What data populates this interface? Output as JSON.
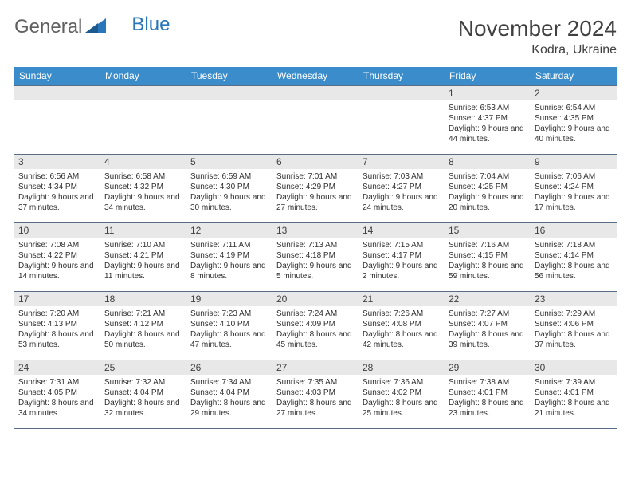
{
  "logo": {
    "general": "General",
    "blue": "Blue"
  },
  "title": "November 2024",
  "subtitle": "Kodra, Ukraine",
  "colors": {
    "header_bg": "#3b8ccb",
    "header_text": "#ffffff",
    "daynum_bg": "#e8e8e8",
    "rule": "#5a6d85",
    "text": "#303030"
  },
  "days_of_week": [
    "Sunday",
    "Monday",
    "Tuesday",
    "Wednesday",
    "Thursday",
    "Friday",
    "Saturday"
  ],
  "weeks": [
    [
      {
        "n": "",
        "sr": "",
        "ss": "",
        "dl": ""
      },
      {
        "n": "",
        "sr": "",
        "ss": "",
        "dl": ""
      },
      {
        "n": "",
        "sr": "",
        "ss": "",
        "dl": ""
      },
      {
        "n": "",
        "sr": "",
        "ss": "",
        "dl": ""
      },
      {
        "n": "",
        "sr": "",
        "ss": "",
        "dl": ""
      },
      {
        "n": "1",
        "sr": "Sunrise: 6:53 AM",
        "ss": "Sunset: 4:37 PM",
        "dl": "Daylight: 9 hours and 44 minutes."
      },
      {
        "n": "2",
        "sr": "Sunrise: 6:54 AM",
        "ss": "Sunset: 4:35 PM",
        "dl": "Daylight: 9 hours and 40 minutes."
      }
    ],
    [
      {
        "n": "3",
        "sr": "Sunrise: 6:56 AM",
        "ss": "Sunset: 4:34 PM",
        "dl": "Daylight: 9 hours and 37 minutes."
      },
      {
        "n": "4",
        "sr": "Sunrise: 6:58 AM",
        "ss": "Sunset: 4:32 PM",
        "dl": "Daylight: 9 hours and 34 minutes."
      },
      {
        "n": "5",
        "sr": "Sunrise: 6:59 AM",
        "ss": "Sunset: 4:30 PM",
        "dl": "Daylight: 9 hours and 30 minutes."
      },
      {
        "n": "6",
        "sr": "Sunrise: 7:01 AM",
        "ss": "Sunset: 4:29 PM",
        "dl": "Daylight: 9 hours and 27 minutes."
      },
      {
        "n": "7",
        "sr": "Sunrise: 7:03 AM",
        "ss": "Sunset: 4:27 PM",
        "dl": "Daylight: 9 hours and 24 minutes."
      },
      {
        "n": "8",
        "sr": "Sunrise: 7:04 AM",
        "ss": "Sunset: 4:25 PM",
        "dl": "Daylight: 9 hours and 20 minutes."
      },
      {
        "n": "9",
        "sr": "Sunrise: 7:06 AM",
        "ss": "Sunset: 4:24 PM",
        "dl": "Daylight: 9 hours and 17 minutes."
      }
    ],
    [
      {
        "n": "10",
        "sr": "Sunrise: 7:08 AM",
        "ss": "Sunset: 4:22 PM",
        "dl": "Daylight: 9 hours and 14 minutes."
      },
      {
        "n": "11",
        "sr": "Sunrise: 7:10 AM",
        "ss": "Sunset: 4:21 PM",
        "dl": "Daylight: 9 hours and 11 minutes."
      },
      {
        "n": "12",
        "sr": "Sunrise: 7:11 AM",
        "ss": "Sunset: 4:19 PM",
        "dl": "Daylight: 9 hours and 8 minutes."
      },
      {
        "n": "13",
        "sr": "Sunrise: 7:13 AM",
        "ss": "Sunset: 4:18 PM",
        "dl": "Daylight: 9 hours and 5 minutes."
      },
      {
        "n": "14",
        "sr": "Sunrise: 7:15 AM",
        "ss": "Sunset: 4:17 PM",
        "dl": "Daylight: 9 hours and 2 minutes."
      },
      {
        "n": "15",
        "sr": "Sunrise: 7:16 AM",
        "ss": "Sunset: 4:15 PM",
        "dl": "Daylight: 8 hours and 59 minutes."
      },
      {
        "n": "16",
        "sr": "Sunrise: 7:18 AM",
        "ss": "Sunset: 4:14 PM",
        "dl": "Daylight: 8 hours and 56 minutes."
      }
    ],
    [
      {
        "n": "17",
        "sr": "Sunrise: 7:20 AM",
        "ss": "Sunset: 4:13 PM",
        "dl": "Daylight: 8 hours and 53 minutes."
      },
      {
        "n": "18",
        "sr": "Sunrise: 7:21 AM",
        "ss": "Sunset: 4:12 PM",
        "dl": "Daylight: 8 hours and 50 minutes."
      },
      {
        "n": "19",
        "sr": "Sunrise: 7:23 AM",
        "ss": "Sunset: 4:10 PM",
        "dl": "Daylight: 8 hours and 47 minutes."
      },
      {
        "n": "20",
        "sr": "Sunrise: 7:24 AM",
        "ss": "Sunset: 4:09 PM",
        "dl": "Daylight: 8 hours and 45 minutes."
      },
      {
        "n": "21",
        "sr": "Sunrise: 7:26 AM",
        "ss": "Sunset: 4:08 PM",
        "dl": "Daylight: 8 hours and 42 minutes."
      },
      {
        "n": "22",
        "sr": "Sunrise: 7:27 AM",
        "ss": "Sunset: 4:07 PM",
        "dl": "Daylight: 8 hours and 39 minutes."
      },
      {
        "n": "23",
        "sr": "Sunrise: 7:29 AM",
        "ss": "Sunset: 4:06 PM",
        "dl": "Daylight: 8 hours and 37 minutes."
      }
    ],
    [
      {
        "n": "24",
        "sr": "Sunrise: 7:31 AM",
        "ss": "Sunset: 4:05 PM",
        "dl": "Daylight: 8 hours and 34 minutes."
      },
      {
        "n": "25",
        "sr": "Sunrise: 7:32 AM",
        "ss": "Sunset: 4:04 PM",
        "dl": "Daylight: 8 hours and 32 minutes."
      },
      {
        "n": "26",
        "sr": "Sunrise: 7:34 AM",
        "ss": "Sunset: 4:04 PM",
        "dl": "Daylight: 8 hours and 29 minutes."
      },
      {
        "n": "27",
        "sr": "Sunrise: 7:35 AM",
        "ss": "Sunset: 4:03 PM",
        "dl": "Daylight: 8 hours and 27 minutes."
      },
      {
        "n": "28",
        "sr": "Sunrise: 7:36 AM",
        "ss": "Sunset: 4:02 PM",
        "dl": "Daylight: 8 hours and 25 minutes."
      },
      {
        "n": "29",
        "sr": "Sunrise: 7:38 AM",
        "ss": "Sunset: 4:01 PM",
        "dl": "Daylight: 8 hours and 23 minutes."
      },
      {
        "n": "30",
        "sr": "Sunrise: 7:39 AM",
        "ss": "Sunset: 4:01 PM",
        "dl": "Daylight: 8 hours and 21 minutes."
      }
    ]
  ]
}
